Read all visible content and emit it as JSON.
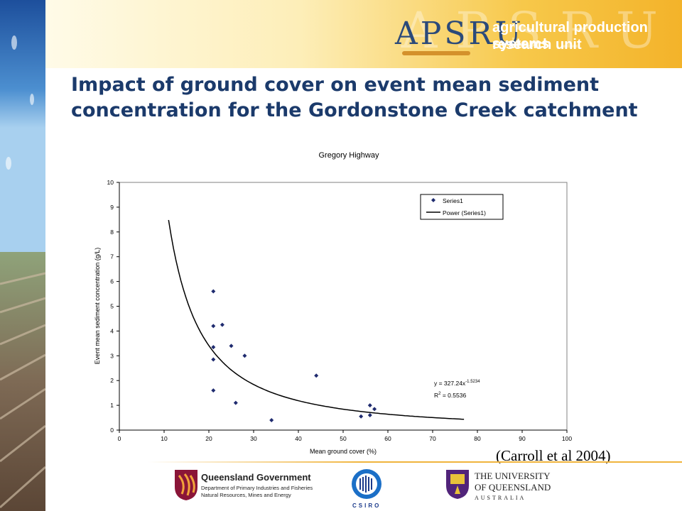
{
  "header": {
    "logo_text": "APSRU",
    "org_line1": "agricultural production systems",
    "org_line2": "research unit"
  },
  "slide": {
    "title": "Impact of ground cover on event mean sediment concentration for the Gordonstone Creek catchment",
    "citation": "(Carroll et al 2004)"
  },
  "chart_data": {
    "type": "scatter",
    "title": "Gregory Highway",
    "xlabel": "Mean ground cover (%)",
    "ylabel": "Event mean sediment concentration (g/L)",
    "xlim": [
      0,
      100
    ],
    "ylim": [
      0,
      10
    ],
    "xticks": [
      0,
      10,
      20,
      30,
      40,
      50,
      60,
      70,
      80,
      90,
      100
    ],
    "yticks": [
      0,
      1,
      2,
      3,
      4,
      5,
      6,
      7,
      8,
      9,
      10
    ],
    "grid": false,
    "legend_position": "top-right",
    "series": [
      {
        "name": "Series1",
        "marker": "diamond",
        "color": "#1f2b6f",
        "points": [
          [
            21,
            5.6
          ],
          [
            21,
            4.2
          ],
          [
            21,
            3.35
          ],
          [
            21,
            2.85
          ],
          [
            21,
            1.6
          ],
          [
            23,
            4.25
          ],
          [
            25,
            3.4
          ],
          [
            26,
            1.1
          ],
          [
            28,
            3.0
          ],
          [
            34,
            0.4
          ],
          [
            44,
            2.2
          ],
          [
            54,
            0.55
          ],
          [
            56,
            1.0
          ],
          [
            56,
            0.6
          ],
          [
            57,
            0.85
          ]
        ]
      }
    ],
    "trendline": {
      "name": "Power (Series1)",
      "type": "power",
      "coefficient": 327.24,
      "exponent": -1.5234,
      "x_range": [
        11,
        77
      ],
      "color": "#000000"
    },
    "annotations": {
      "equation_prefix": "y = 327.24x",
      "equation_exponent": "-1.5234",
      "r2_prefix": "R",
      "r2_sup": "2",
      "r2_suffix": " = 0.5536"
    }
  },
  "footer": {
    "qld_name": "Queensland Government",
    "qld_dept1": "Department of Primary Industries and Fisheries",
    "qld_dept2": "Natural Resources, Mines and Energy",
    "csiro": "CSIRO",
    "uq_line1": "THE UNIVERSITY",
    "uq_line2": "OF QUEENSLAND",
    "uq_line3": "AUSTRALIA"
  },
  "colors": {
    "title": "#1b3a6b",
    "banner": "#f3b32a",
    "marker": "#1f2b6f"
  }
}
